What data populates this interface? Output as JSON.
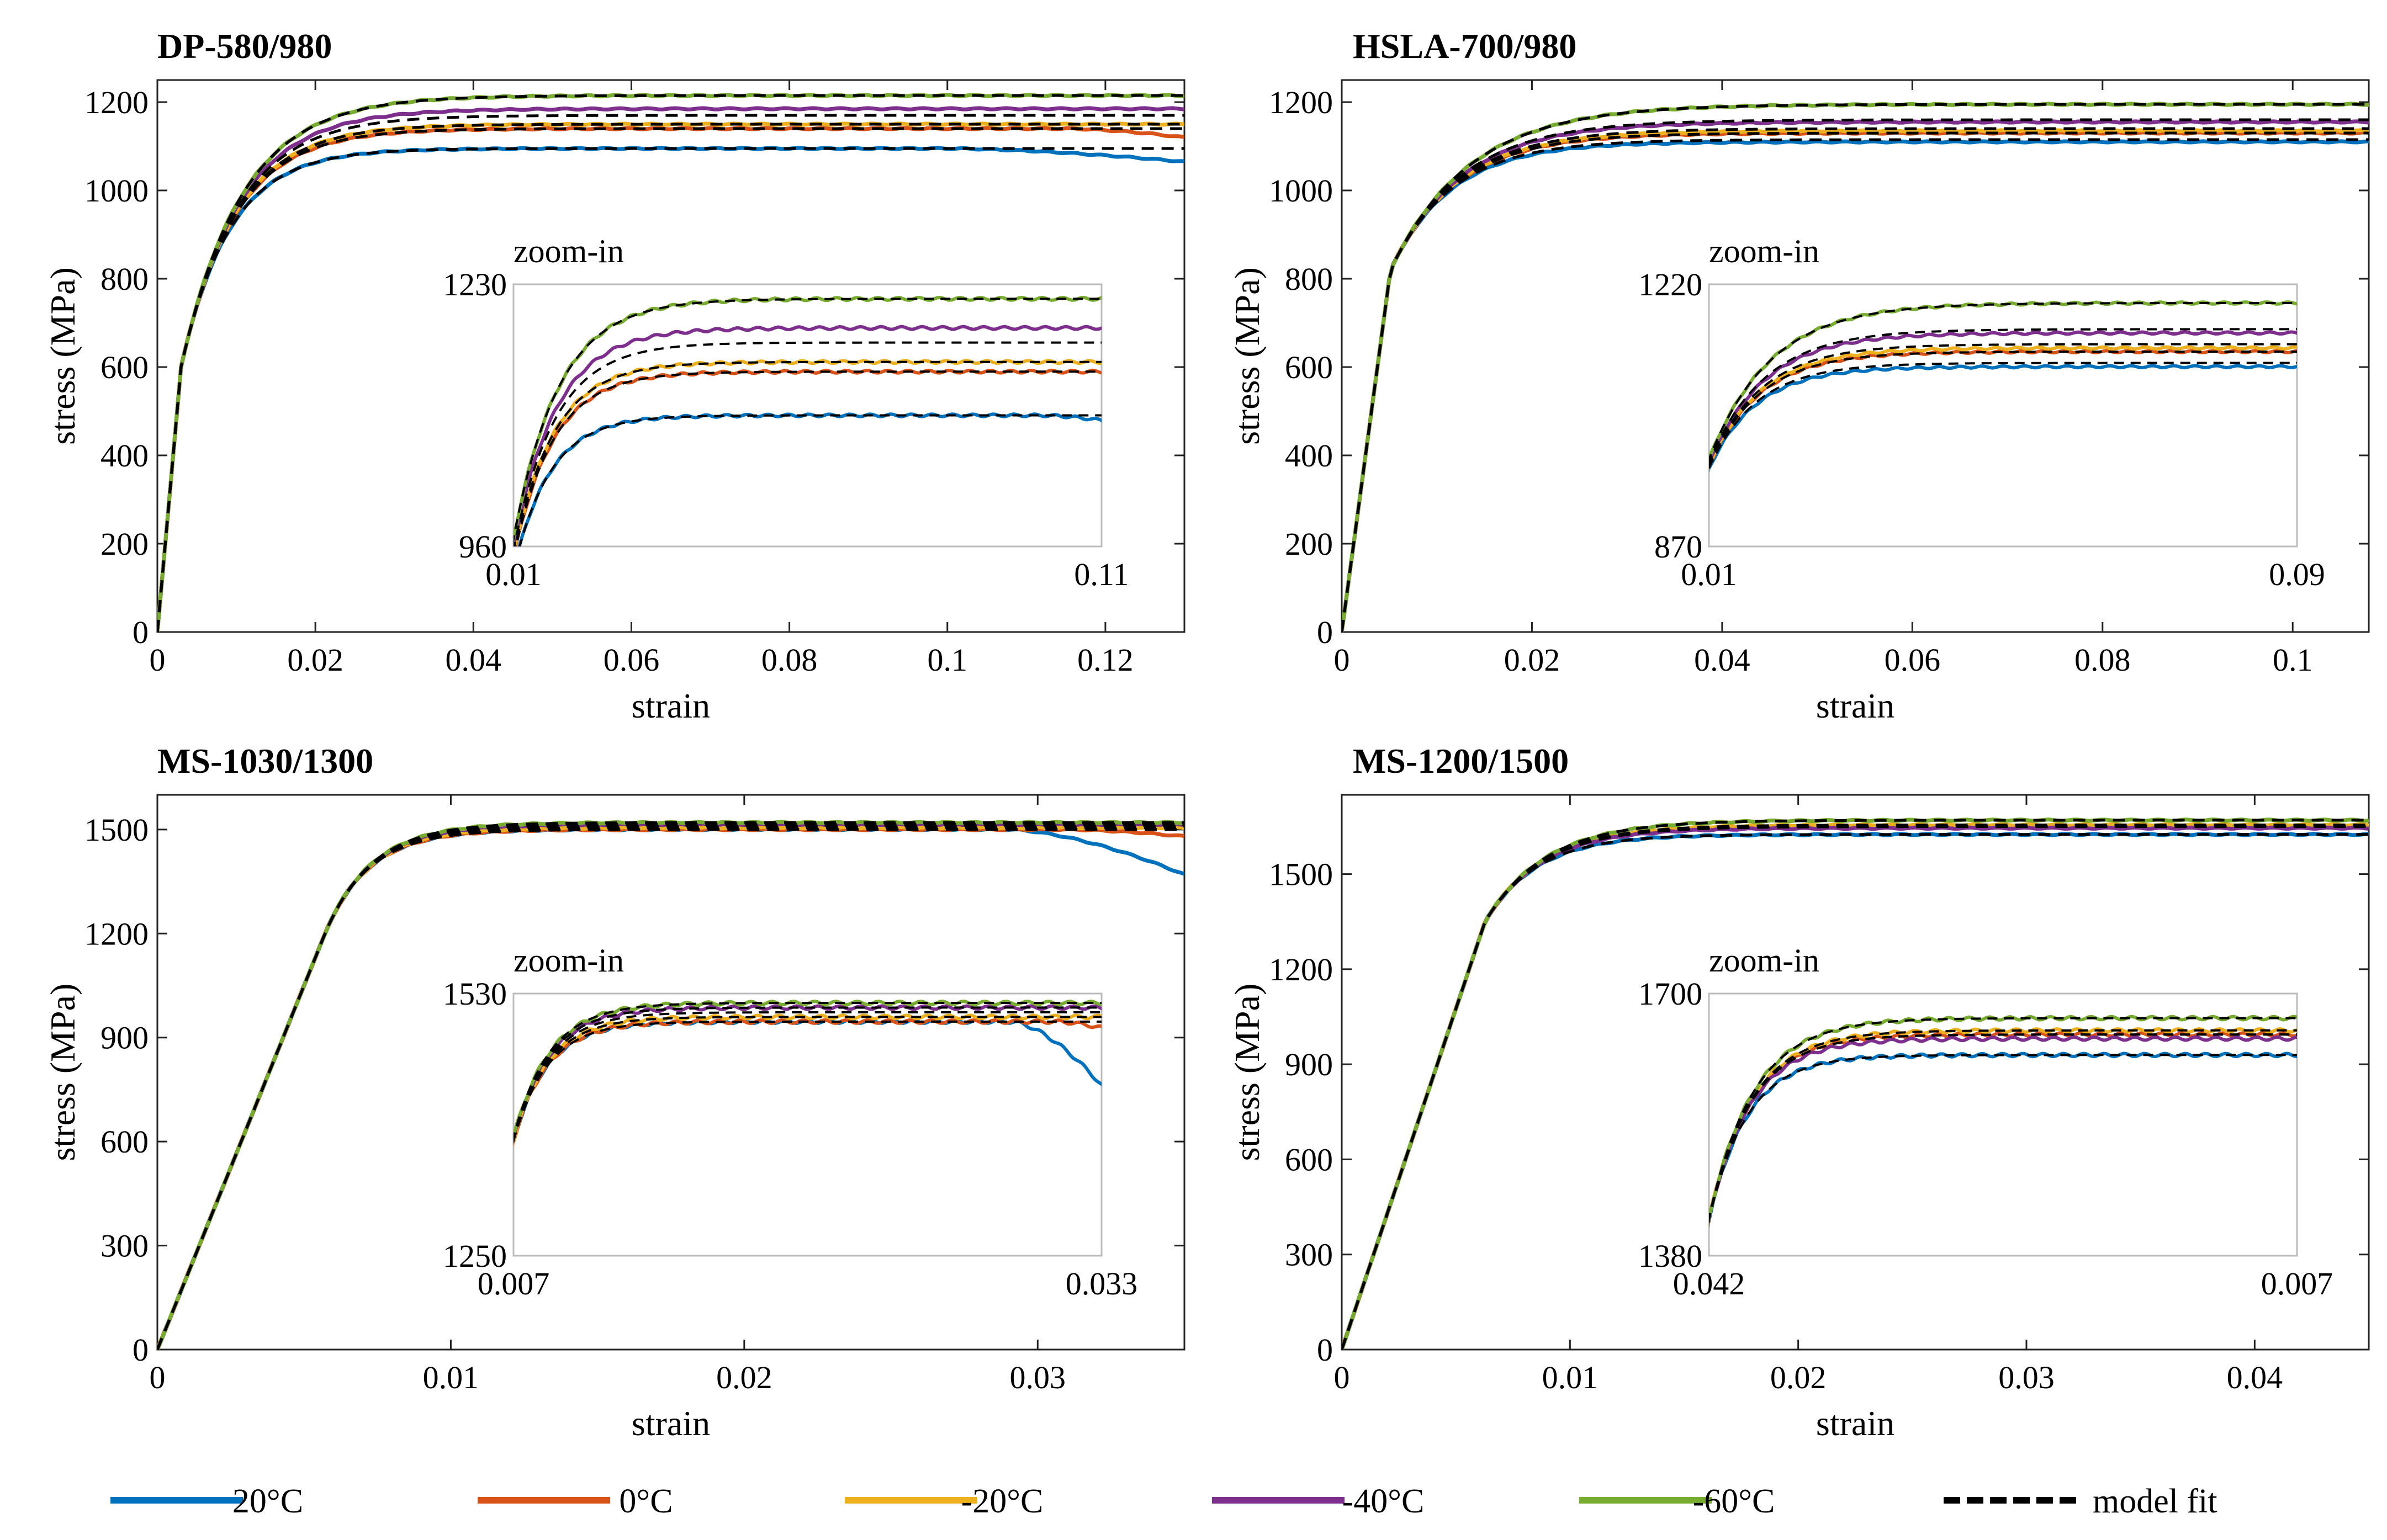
{
  "legend": [
    {
      "label": "20°C",
      "color": "#0072BD",
      "dashed": false
    },
    {
      "label": "0°C",
      "color": "#D95319",
      "dashed": false
    },
    {
      "label": "-20°C",
      "color": "#EDB120",
      "dashed": false
    },
    {
      "label": "-40°C",
      "color": "#7E2F8E",
      "dashed": false
    },
    {
      "label": "-60°C",
      "color": "#77AC30",
      "dashed": false
    },
    {
      "label": "model fit",
      "color": "#000000",
      "dashed": true
    }
  ],
  "chart_data": [
    {
      "type": "line",
      "title": "DP-580/980",
      "xlabel": "strain",
      "ylabel": "stress (MPa)",
      "xlim": [
        0,
        0.13
      ],
      "ylim": [
        0,
        1250
      ],
      "xticks": [
        0,
        0.02,
        0.04,
        0.06,
        0.08,
        0.1,
        0.12
      ],
      "xtick_labels": [
        "0",
        "0.02",
        "0.04",
        "0.06",
        "0.08",
        "0.1",
        "0.12"
      ],
      "yticks": [
        0,
        200,
        400,
        600,
        800,
        1000,
        1200
      ],
      "ytick_labels": [
        "0",
        "200",
        "400",
        "600",
        "800",
        "1000",
        "1200"
      ],
      "curve": {
        "E": 200000,
        "yield": 600,
        "slope": 80000
      },
      "series": [
        {
          "name": "20°C",
          "values": [
            1095,
            1095,
            1080,
            1065
          ],
          "drop_start": 0.1,
          "drop_to": 1065
        },
        {
          "name": "0°C",
          "values": [
            1140,
            1130,
            1125,
            1120
          ],
          "drop_start": 0.115,
          "drop_to": 1120
        },
        {
          "name": "-20°C",
          "values": [
            1150,
            1148,
            1145,
            1145
          ]
        },
        {
          "name": "-40°C",
          "values": [
            1185,
            1170,
            1165,
            1160
          ]
        },
        {
          "name": "-60°C",
          "values": [
            1215,
            1210,
            1208,
            1205
          ]
        }
      ],
      "fit_values": [
        1095,
        1140,
        1150,
        1170,
        1215
      ],
      "inset": {
        "label": "zoom-in",
        "xlim": [
          0.01,
          0.11
        ],
        "ylim": [
          960,
          1230
        ],
        "xtick_labels": [
          "0.01",
          "0.11"
        ],
        "ytick_labels": [
          "960",
          "1230"
        ]
      }
    },
    {
      "type": "line",
      "title": "HSLA-700/980",
      "xlabel": "strain",
      "ylabel": "stress (MPa)",
      "xlim": [
        0,
        0.108
      ],
      "ylim": [
        0,
        1250
      ],
      "xticks": [
        0,
        0.02,
        0.04,
        0.06,
        0.08,
        0.1
      ],
      "xtick_labels": [
        "0",
        "0.02",
        "0.04",
        "0.06",
        "0.08",
        "0.1"
      ],
      "yticks": [
        0,
        200,
        400,
        600,
        800,
        1000,
        1200
      ],
      "ytick_labels": [
        "0",
        "200",
        "400",
        "600",
        "800",
        "1000",
        "1200"
      ],
      "curve": {
        "E": 160000,
        "yield": 820,
        "slope": 45000
      },
      "series": [
        {
          "name": "20°C",
          "values": [
            1110,
            1115,
            1112,
            1110
          ]
        },
        {
          "name": "0°C",
          "values": [
            1130,
            1135,
            1125,
            1120
          ]
        },
        {
          "name": "-20°C",
          "values": [
            1135,
            1140,
            1135,
            1130
          ]
        },
        {
          "name": "-40°C",
          "values": [
            1155,
            1160,
            1158,
            1150
          ]
        },
        {
          "name": "-60°C",
          "values": [
            1195,
            1200,
            1205,
            1210
          ]
        }
      ],
      "fit_values": [
        1115,
        1130,
        1140,
        1160,
        1195
      ],
      "inset": {
        "label": "zoom-in",
        "xlim": [
          0.01,
          0.09
        ],
        "ylim": [
          870,
          1220
        ],
        "xtick_labels": [
          "0.01",
          "0.09"
        ],
        "ytick_labels": [
          "870",
          "1220"
        ]
      }
    },
    {
      "type": "line",
      "title": "MS-1030/1300",
      "xlabel": "strain",
      "ylabel": "stress (MPa)",
      "xlim": [
        0,
        0.035
      ],
      "ylim": [
        0,
        1600
      ],
      "xticks": [
        0,
        0.01,
        0.02,
        0.03
      ],
      "xtick_labels": [
        "0",
        "0.01",
        "0.02",
        "0.03"
      ],
      "yticks": [
        0,
        300,
        600,
        900,
        1200,
        1500
      ],
      "ytick_labels": [
        "0",
        "300",
        "600",
        "900",
        "1200",
        "1500"
      ],
      "curve": {
        "E": 210000,
        "yield": 1200,
        "slope": 200000
      },
      "series": [
        {
          "name": "20°C",
          "values": [
            1500,
            1505,
            1450,
            1370
          ],
          "drop_start": 0.029,
          "drop_to": 1370
        },
        {
          "name": "0°C",
          "values": [
            1500,
            1500,
            1490,
            1480
          ],
          "drop_start": 0.031,
          "drop_to": 1480
        },
        {
          "name": "-20°C",
          "values": [
            1505,
            1510,
            1505,
            1500
          ]
        },
        {
          "name": "-40°C",
          "values": [
            1515,
            1518,
            1515,
            1512
          ]
        },
        {
          "name": "-60°C",
          "values": [
            1520,
            1522,
            1522,
            1520
          ]
        }
      ],
      "fit_values": [
        1500,
        1505,
        1510,
        1515,
        1520
      ],
      "inset": {
        "label": "zoom-in",
        "xlim": [
          0.007,
          0.033
        ],
        "ylim": [
          1250,
          1530
        ],
        "xtick_labels": [
          "0.007",
          "0.033"
        ],
        "ytick_labels": [
          "1250",
          "1530"
        ]
      }
    },
    {
      "type": "line",
      "title": "MS-1200/1500",
      "xlabel": "strain",
      "ylabel": "stress (MPa)",
      "xlim": [
        0,
        0.045
      ],
      "ylim": [
        0,
        1750
      ],
      "xticks": [
        0,
        0.01,
        0.02,
        0.03,
        0.04
      ],
      "xtick_labels": [
        "0",
        "0.01",
        "0.02",
        "0.03",
        "0.04"
      ],
      "yticks": [
        0,
        300,
        600,
        900,
        1200,
        1500
      ],
      "ytick_labels": [
        "0",
        "300",
        "600",
        "900",
        "1200",
        "1500"
      ],
      "curve": {
        "E": 215000,
        "yield": 1350,
        "slope": 120000
      },
      "series": [
        {
          "name": "20°C",
          "values": [
            1625,
            1628,
            1625,
            1622
          ]
        },
        {
          "name": "0°C",
          "values": [
            1650,
            1652,
            1650,
            1648
          ]
        },
        {
          "name": "-20°C",
          "values": [
            1655,
            1658,
            1656,
            1655
          ]
        },
        {
          "name": "-40°C",
          "values": [
            1645,
            1650,
            1645,
            1640
          ]
        },
        {
          "name": "-60°C",
          "values": [
            1670,
            1672,
            1672,
            1670
          ]
        }
      ],
      "fit_values": [
        1625,
        1650,
        1655,
        1650,
        1670
      ],
      "inset": {
        "label": "zoom-in",
        "xlim": [
          0.042,
          0.007
        ],
        "ylim": [
          1380,
          1700
        ],
        "xtick_labels": [
          "0.042",
          "0.007"
        ],
        "ytick_labels": [
          "1380",
          "1700"
        ]
      }
    }
  ]
}
